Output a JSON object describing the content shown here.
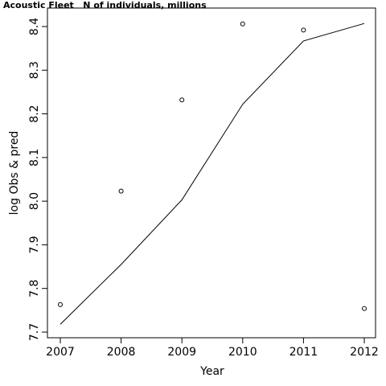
{
  "chart_data": {
    "type": "line",
    "title": "Acoustic Fleet   N of individuals, millions",
    "xlabel": "Year",
    "ylabel": "log Obs & pred",
    "xlim": [
      2007,
      2012
    ],
    "ylim": [
      7.7,
      8.42
    ],
    "x_ticks": [
      "2007",
      "2008",
      "2009",
      "2010",
      "2011",
      "2012"
    ],
    "y_ticks": [
      "7.7",
      "7.8",
      "7.9",
      "8.0",
      "8.1",
      "8.2",
      "8.3",
      "8.4"
    ],
    "series": [
      {
        "kind": "observed-points",
        "x": [
          2007,
          2008,
          2009,
          2010,
          2011,
          2012
        ],
        "y": [
          7.763,
          8.023,
          8.232,
          8.406,
          8.392,
          7.754
        ]
      },
      {
        "kind": "predicted-line",
        "x": [
          2007,
          2008,
          2009,
          2010,
          2011,
          2012
        ],
        "y": [
          7.718,
          7.855,
          8.003,
          8.222,
          8.367,
          8.407
        ]
      }
    ],
    "grid": false,
    "legend": "none"
  }
}
